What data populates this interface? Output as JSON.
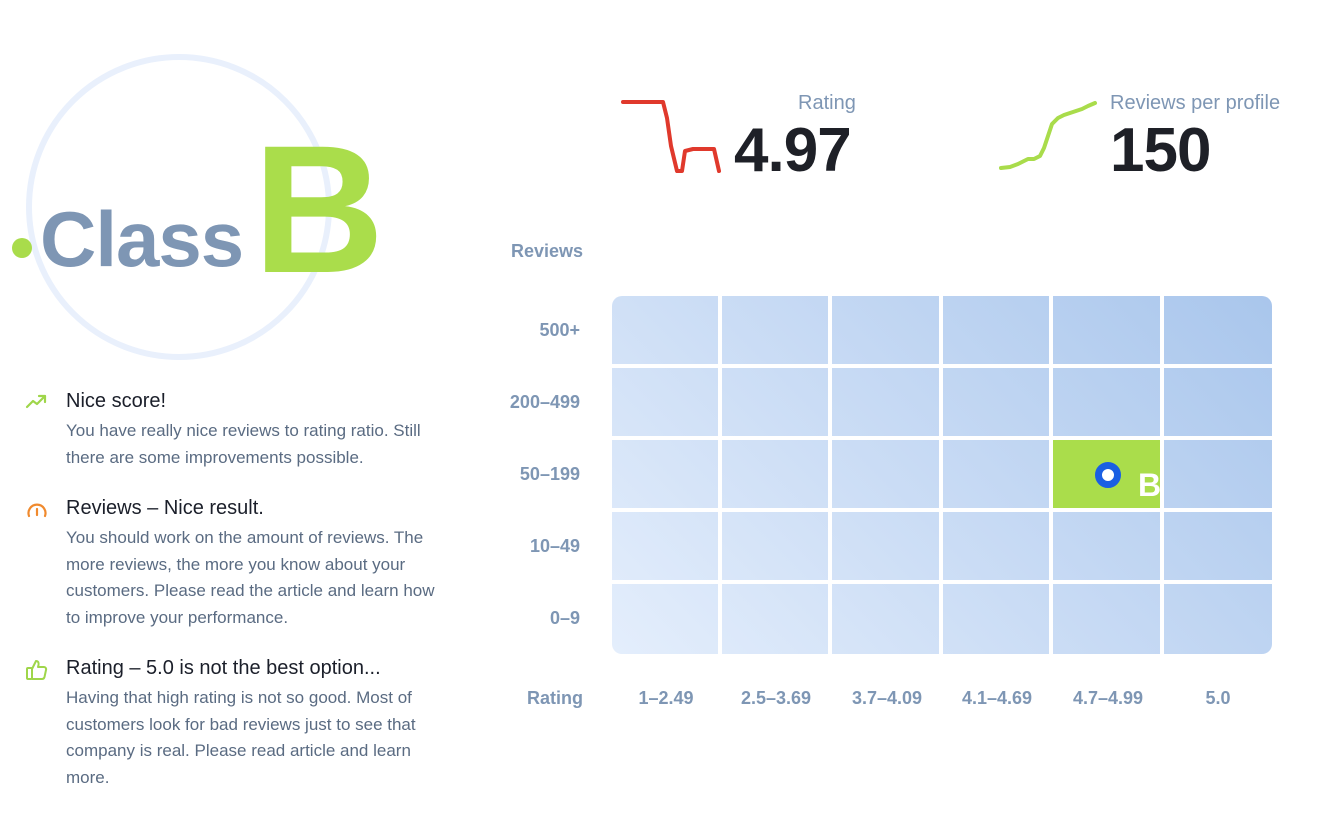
{
  "classification": {
    "word": "Class",
    "grade": "B"
  },
  "feedback": [
    {
      "icon": "trending-up-icon",
      "title": "Nice score!",
      "body": "You have really nice reviews to rating ratio. Still there are some improvements possible."
    },
    {
      "icon": "gauge-icon",
      "title": "Reviews – Nice result.",
      "body": "You should work on the amount of reviews. The more reviews, the more you know about your customers. Please read the article and learn how to improve your performance."
    },
    {
      "icon": "thumbs-up-icon",
      "title": "Rating – 5.0 is not the best option...",
      "body": "Having that high rating is not so good. Most of customers look for bad reviews just to see that company is real. Please read article and learn more."
    }
  ],
  "stats": {
    "rating": {
      "label": "Rating",
      "value": "4.97",
      "color": "#e0392c"
    },
    "reviews_per_profile": {
      "label": "Reviews per profile",
      "value": "150",
      "color": "#a9dc4b"
    }
  },
  "matrix": {
    "y_title": "Reviews",
    "x_title": "Rating",
    "rows": [
      "500+",
      "200–499",
      "50–199",
      "10–49",
      "0–9"
    ],
    "columns": [
      "1–2.49",
      "2.5–3.69",
      "3.7–4.09",
      "4.1–4.69",
      "4.7–4.99",
      "5.0"
    ],
    "highlight": {
      "row": "50–199",
      "column": "4.7–4.99",
      "label": "B",
      "color": "#aadd4b",
      "marker_color": "#1a5fe3"
    }
  }
}
